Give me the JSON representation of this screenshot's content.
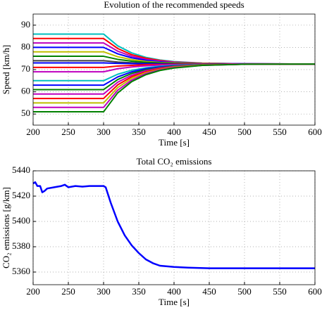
{
  "chart_data": [
    {
      "type": "line",
      "title": "Evolution of the recommended speeds",
      "xlabel": "Time [s]",
      "ylabel": "Speed [km/h]",
      "x": [
        200,
        300,
        320,
        340,
        360,
        380,
        400,
        440,
        500,
        600
      ],
      "xlim": [
        200,
        600
      ],
      "xticks": [
        200,
        250,
        300,
        350,
        400,
        450,
        500,
        550,
        600
      ],
      "ylim": [
        45,
        95
      ],
      "yticks": [
        50,
        60,
        70,
        80,
        90
      ],
      "grid": true,
      "line_width": 2,
      "series": [
        {
          "color": "#00bfbf",
          "values": [
            86,
            86,
            80.7,
            77.5,
            75.5,
            74.3,
            73.6,
            72.9,
            72.6,
            72.5
          ]
        },
        {
          "color": "#ff0000",
          "values": [
            84,
            84,
            79.5,
            76.7,
            75.1,
            74.1,
            73.4,
            72.9,
            72.6,
            72.5
          ]
        },
        {
          "color": "#bf00bf",
          "values": [
            82,
            82,
            78.3,
            76.0,
            74.6,
            73.8,
            73.3,
            72.8,
            72.6,
            72.5
          ]
        },
        {
          "color": "#0000ff",
          "values": [
            80,
            80,
            77.1,
            75.3,
            74.2,
            73.5,
            73.1,
            72.7,
            72.6,
            72.5
          ]
        },
        {
          "color": "#bfbf00",
          "values": [
            78,
            78,
            75.8,
            74.5,
            73.7,
            73.2,
            73.0,
            72.7,
            72.5,
            72.5
          ]
        },
        {
          "color": "#008000",
          "values": [
            76,
            76,
            74.6,
            73.8,
            73.3,
            73.0,
            72.8,
            72.6,
            72.5,
            72.5
          ]
        },
        {
          "color": "#404040",
          "values": [
            74,
            74,
            73.4,
            73.1,
            72.8,
            72.7,
            72.6,
            72.5,
            72.5,
            72.5
          ]
        },
        {
          "color": "#0000ff",
          "values": [
            73,
            73,
            72.8,
            72.7,
            72.6,
            72.6,
            72.5,
            72.5,
            72.5,
            72.5
          ]
        },
        {
          "color": "#ff0000",
          "values": [
            71,
            71,
            71.6,
            71.9,
            72.2,
            72.3,
            72.4,
            72.5,
            72.5,
            72.5
          ]
        },
        {
          "color": "#bf00bf",
          "values": [
            69,
            69,
            70.4,
            71.2,
            71.7,
            72.0,
            72.2,
            72.4,
            72.5,
            72.5
          ]
        },
        {
          "color": "#00bfbf",
          "values": [
            65,
            65,
            67.9,
            69.7,
            70.8,
            71.5,
            71.9,
            72.3,
            72.4,
            72.5
          ]
        },
        {
          "color": "#0000ff",
          "values": [
            63,
            63,
            66.7,
            69.0,
            70.4,
            71.2,
            71.7,
            72.2,
            72.4,
            72.5
          ]
        },
        {
          "color": "#008000",
          "values": [
            61,
            61,
            65.5,
            68.3,
            69.9,
            70.9,
            71.6,
            72.2,
            72.4,
            72.5
          ]
        },
        {
          "color": "#bf00bf",
          "values": [
            59,
            59,
            64.3,
            67.5,
            69.5,
            70.7,
            71.4,
            72.1,
            72.4,
            72.5
          ]
        },
        {
          "color": "#ff0000",
          "values": [
            57,
            57,
            63.1,
            66.8,
            69.0,
            70.4,
            71.2,
            72.0,
            72.4,
            72.5
          ]
        },
        {
          "color": "#bfbf00",
          "values": [
            55,
            55,
            61.9,
            66.1,
            68.6,
            70.1,
            71.1,
            72.0,
            72.4,
            72.5
          ]
        },
        {
          "color": "#bf00bf",
          "values": [
            53,
            53,
            60.7,
            65.3,
            68.2,
            69.9,
            70.9,
            71.9,
            72.4,
            72.5
          ]
        },
        {
          "color": "#008000",
          "values": [
            51,
            51,
            59.5,
            64.6,
            67.7,
            69.6,
            70.7,
            71.9,
            72.4,
            72.5
          ]
        }
      ]
    },
    {
      "type": "line",
      "title": "Total CO₂ emissions",
      "xlabel": "Time [s]",
      "ylabel": "CO₂ emissions [g/km]",
      "x": [
        200,
        203,
        206,
        210,
        213,
        216,
        220,
        230,
        240,
        245,
        250,
        260,
        270,
        280,
        290,
        300,
        303,
        310,
        320,
        330,
        340,
        350,
        360,
        370,
        380,
        400,
        420,
        450,
        500,
        600
      ],
      "xlim": [
        200,
        600
      ],
      "xticks": [
        200,
        250,
        300,
        350,
        400,
        450,
        500,
        550,
        600
      ],
      "ylim": [
        5350,
        5440
      ],
      "yticks": [
        5360,
        5380,
        5400,
        5420,
        5440
      ],
      "grid": true,
      "line_width": 2.5,
      "series": [
        {
          "color": "#0000ff",
          "values": [
            5430,
            5431,
            5428,
            5428,
            5423,
            5424,
            5426,
            5427,
            5428,
            5429,
            5427,
            5428,
            5427.5,
            5428,
            5428,
            5428,
            5427,
            5415,
            5400,
            5389,
            5381,
            5375,
            5370,
            5367,
            5365,
            5364,
            5363.5,
            5363,
            5363,
            5363
          ]
        }
      ]
    }
  ]
}
